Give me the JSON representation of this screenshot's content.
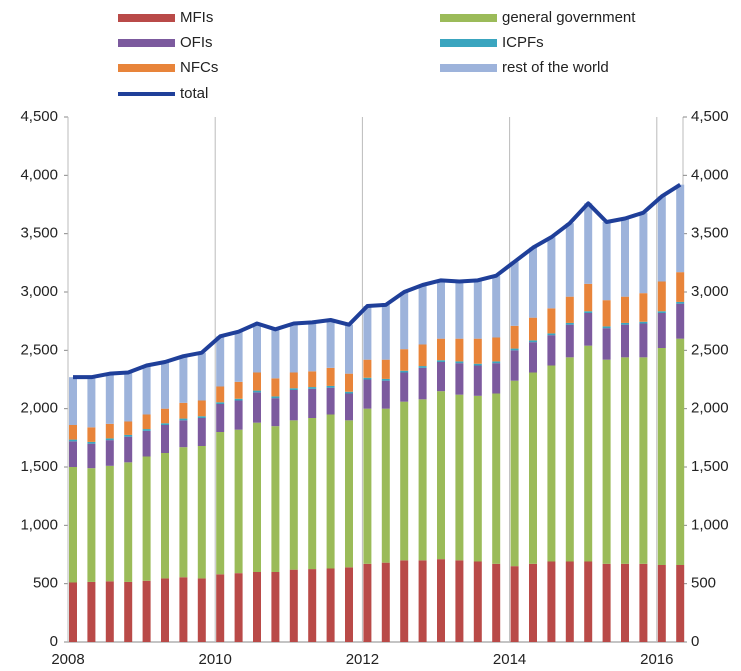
{
  "chart_data": {
    "type": "stacked_bar_line",
    "categories": [
      "2008",
      null,
      null,
      null,
      null,
      null,
      null,
      null,
      "2010",
      null,
      null,
      null,
      null,
      null,
      null,
      null,
      "2012",
      null,
      null,
      null,
      null,
      null,
      null,
      null,
      "2014",
      null,
      null,
      null,
      null,
      null,
      null,
      null,
      "2016",
      null
    ],
    "series": [
      {
        "name": "MFIs",
        "color": "#b94a48",
        "values": [
          510,
          515,
          520,
          515,
          525,
          545,
          555,
          545,
          580,
          590,
          600,
          600,
          620,
          625,
          630,
          640,
          670,
          680,
          700,
          700,
          710,
          700,
          690,
          670,
          650,
          670,
          690,
          690,
          690,
          670,
          670,
          670,
          660,
          660
        ]
      },
      {
        "name": "general government",
        "color": "#9bbb59",
        "values": [
          990,
          975,
          990,
          1025,
          1065,
          1075,
          1115,
          1135,
          1220,
          1230,
          1280,
          1250,
          1280,
          1295,
          1320,
          1260,
          1330,
          1320,
          1360,
          1380,
          1440,
          1420,
          1420,
          1460,
          1590,
          1640,
          1680,
          1750,
          1850,
          1750,
          1770,
          1770,
          1860,
          1940
        ]
      },
      {
        "name": "OFIs",
        "color": "#7c5a9e",
        "values": [
          220,
          210,
          220,
          220,
          220,
          240,
          230,
          240,
          240,
          250,
          260,
          240,
          260,
          250,
          230,
          230,
          250,
          240,
          250,
          270,
          250,
          270,
          260,
          260,
          260,
          260,
          260,
          280,
          280,
          270,
          280,
          290,
          300,
          300
        ]
      },
      {
        "name": "ICPFs",
        "color": "#3aa5bf",
        "values": [
          15,
          15,
          15,
          15,
          15,
          15,
          15,
          15,
          15,
          15,
          15,
          15,
          15,
          15,
          15,
          15,
          15,
          15,
          15,
          15,
          15,
          15,
          15,
          15,
          15,
          15,
          15,
          15,
          15,
          15,
          15,
          15,
          15,
          15
        ]
      },
      {
        "name": "NFCs",
        "color": "#e8843a",
        "values": [
          125,
          125,
          125,
          115,
          125,
          125,
          135,
          135,
          135,
          145,
          155,
          155,
          135,
          135,
          155,
          155,
          155,
          165,
          185,
          185,
          185,
          195,
          215,
          205,
          195,
          195,
          215,
          225,
          235,
          225,
          225,
          245,
          255,
          255
        ]
      },
      {
        "name": "rest of the world",
        "color": "#9db3db",
        "values": [
          410,
          430,
          430,
          420,
          420,
          400,
          400,
          410,
          430,
          430,
          420,
          420,
          420,
          420,
          410,
          420,
          460,
          470,
          490,
          510,
          500,
          490,
          500,
          530,
          550,
          600,
          610,
          630,
          690,
          670,
          670,
          690,
          730,
          750
        ]
      },
      {
        "name": "total",
        "color": "#1f3f99",
        "line": true,
        "values": [
          2270,
          2270,
          2300,
          2310,
          2370,
          2400,
          2450,
          2480,
          2620,
          2660,
          2730,
          2680,
          2730,
          2740,
          2760,
          2720,
          2880,
          2890,
          3000,
          3060,
          3100,
          3090,
          3100,
          3140,
          3260,
          3380,
          3470,
          3590,
          3760,
          3600,
          3630,
          3680,
          3820,
          3920
        ]
      }
    ],
    "ylim": [
      0,
      4500
    ],
    "yticks": [
      0,
      500,
      {
        "value": 1000,
        "label": "1,000"
      },
      {
        "value": 1500,
        "label": "1,500"
      },
      {
        "value": 2000,
        "label": "2,000"
      },
      {
        "value": 2500,
        "label": "2,500"
      },
      {
        "value": 3000,
        "label": "3,000"
      },
      {
        "value": 3500,
        "label": "3,500"
      },
      {
        "value": 4000,
        "label": "4,000"
      },
      {
        "value": 4500,
        "label": "4,500"
      }
    ],
    "y2lim": [
      0,
      4500
    ],
    "y2ticks": [
      0,
      500,
      {
        "value": 1000,
        "label": "1,000"
      },
      {
        "value": 1500,
        "label": "1,500"
      },
      {
        "value": 2000,
        "label": "2,000"
      },
      {
        "value": 2500,
        "label": "2,500"
      },
      {
        "value": 3000,
        "label": "3,000"
      },
      {
        "value": 3500,
        "label": "3,500"
      },
      {
        "value": 4000,
        "label": "4,000"
      },
      {
        "value": 4500,
        "label": "4,500"
      }
    ],
    "grid": "x"
  }
}
